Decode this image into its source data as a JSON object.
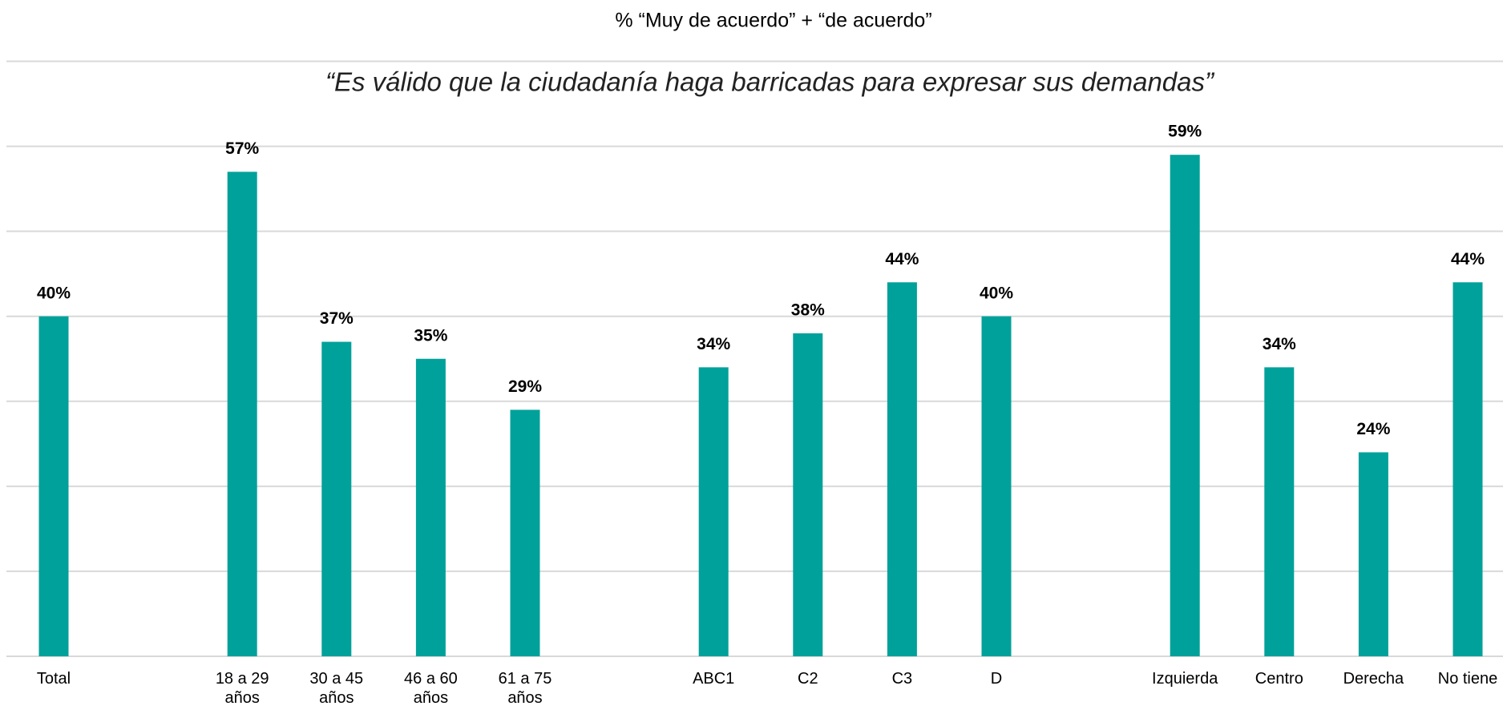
{
  "chart_data": {
    "type": "bar",
    "title": "% “Muy de acuerdo” + “de acuerdo”",
    "subtitle": "“Es válido que la ciudadanía haga barricadas para expresar sus demandas”",
    "categories": [
      "Total",
      null,
      "18 a 29 años",
      "30 a 45 años",
      "46 a 60 años",
      "61 a 75 años",
      null,
      "ABC1",
      "C2",
      "C3",
      "D",
      null,
      "Izquierda",
      "Centro",
      "Derecha",
      "No tiene"
    ],
    "values": [
      40,
      null,
      57,
      37,
      35,
      29,
      null,
      34,
      38,
      44,
      40,
      null,
      59,
      34,
      24,
      44
    ],
    "value_labels": [
      "40%",
      null,
      "57%",
      "37%",
      "35%",
      "29%",
      null,
      "34%",
      "38%",
      "44%",
      "40%",
      null,
      "59%",
      "34%",
      "24%",
      "44%"
    ],
    "color": "#00a19a",
    "ylim": [
      0,
      70
    ],
    "yticks": [
      0,
      10,
      20,
      30,
      40,
      50,
      60,
      70
    ],
    "grid": true
  }
}
